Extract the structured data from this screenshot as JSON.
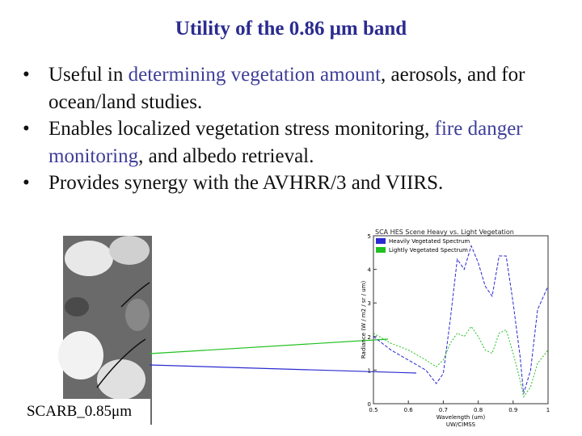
{
  "title": "Utility of the 0.86 μm band",
  "bullets": [
    {
      "segments": [
        {
          "text": "Useful in ",
          "highlight": false
        },
        {
          "text": "determining vegetation amount",
          "highlight": true
        },
        {
          "text": ", aerosols, and for ocean/land studies.",
          "highlight": false
        }
      ]
    },
    {
      "segments": [
        {
          "text": "Enables localized vegetation stress monitoring, ",
          "highlight": false
        },
        {
          "text": "fire danger monitoring",
          "highlight": true
        },
        {
          "text": ", and albedo retrieval.",
          "highlight": false
        }
      ]
    },
    {
      "segments": [
        {
          "text": "Provides synergy with the AVHRR/3 and VIIRS.",
          "highlight": false
        }
      ]
    }
  ],
  "image_caption": "SCARB_0.85μm",
  "figure": {
    "title": "SCA HES Scene Heavy vs. Light Vegetation",
    "ylabel": "Radiance (W / m2 / sr / um)",
    "xlabel": "Wavelength (um)",
    "credit": "UW/CIMSS",
    "xlim": [
      0.5,
      1.0
    ],
    "ylim": [
      0,
      5
    ],
    "xticks": [
      0.5,
      0.6,
      0.7,
      0.8,
      0.9,
      1.0
    ],
    "yticks": [
      0,
      1,
      2,
      3,
      4,
      5
    ],
    "x": [
      0.5,
      0.55,
      0.6,
      0.65,
      0.68,
      0.7,
      0.72,
      0.74,
      0.76,
      0.78,
      0.8,
      0.82,
      0.84,
      0.86,
      0.88,
      0.9,
      0.92,
      0.93,
      0.95,
      0.97,
      1.0
    ],
    "series": [
      {
        "name": "Heavily Vegetated Spectrum",
        "color": "#2a2ad0",
        "values": [
          2.0,
          1.6,
          1.3,
          1.0,
          0.6,
          0.9,
          2.5,
          4.3,
          4.0,
          4.7,
          4.2,
          3.5,
          3.2,
          4.4,
          4.4,
          3.0,
          1.4,
          0.3,
          1.0,
          2.8,
          3.5
        ]
      },
      {
        "name": "Lightly Vegetated Spectrum",
        "color": "#20c020",
        "values": [
          2.1,
          1.8,
          1.6,
          1.3,
          1.1,
          1.3,
          1.8,
          2.1,
          2.0,
          2.3,
          2.0,
          1.6,
          1.5,
          2.1,
          2.2,
          1.5,
          0.7,
          0.2,
          0.5,
          1.2,
          1.6
        ]
      }
    ]
  }
}
